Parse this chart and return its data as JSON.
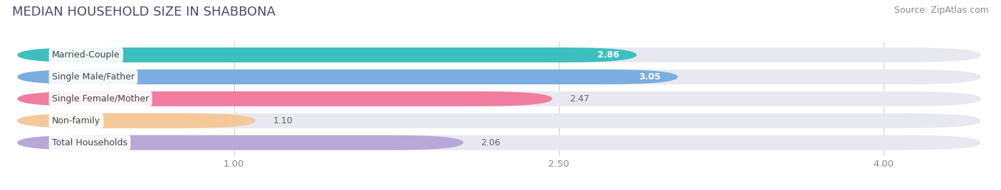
{
  "title": "MEDIAN HOUSEHOLD SIZE IN SHABBONA",
  "source": "Source: ZipAtlas.com",
  "categories": [
    "Married-Couple",
    "Single Male/Father",
    "Single Female/Mother",
    "Non-family",
    "Total Households"
  ],
  "values": [
    2.86,
    3.05,
    2.47,
    1.1,
    2.06
  ],
  "bar_colors": [
    "#3dbfbf",
    "#7aaee0",
    "#f07ca0",
    "#f5c898",
    "#b8a8d8"
  ],
  "bar_bg_color": "#e8e8f0",
  "xmin": 0.0,
  "xlim_left": -0.08,
  "xlim_right": 4.45,
  "xticks": [
    1.0,
    2.5,
    4.0
  ],
  "value_label_inside": [
    true,
    true,
    false,
    false,
    false
  ],
  "title_fontsize": 13,
  "source_fontsize": 9,
  "tick_fontsize": 9.5,
  "bar_label_fontsize": 9,
  "category_fontsize": 9,
  "background_color": "#ffffff",
  "plot_bg_color": "#ffffff",
  "bar_height": 0.68,
  "bar_spacing": 1.0
}
